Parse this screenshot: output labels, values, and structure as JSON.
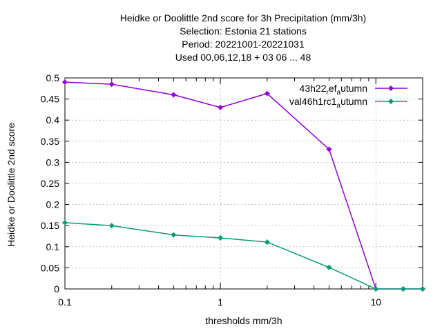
{
  "chart_data": {
    "type": "line",
    "title_lines": [
      "Heidke or Doolittle 2nd score  for 3h Precipitation (mm/3h)",
      "Selection: Estonia      21 stations",
      "Period: 20221001-20221031",
      "Used  00,06,12,18  + 03 06 ... 48"
    ],
    "xlabel": "thresholds mm/3h",
    "ylabel": "Heidke or Doolittle 2nd score",
    "x_scale": "log",
    "xlim": [
      0.1,
      20
    ],
    "ylim": [
      0,
      0.5
    ],
    "x_ticks": [
      0.1,
      1,
      10
    ],
    "x_tick_labels": [
      "0.1",
      "1",
      "10"
    ],
    "y_ticks": [
      0,
      0.05,
      0.1,
      0.15,
      0.2,
      0.25,
      0.3,
      0.35,
      0.4,
      0.45,
      0.5
    ],
    "y_tick_labels": [
      "0",
      "0.05",
      "0.1",
      "0.15",
      "0.2",
      "0.25",
      "0.3",
      "0.35",
      "0.4",
      "0.45",
      "0.5"
    ],
    "grid": true,
    "legend_position": "top-right",
    "series": [
      {
        "name_main": "43h22",
        "name_sub": "r",
        "name_mid": "ef",
        "name_sub2": "a",
        "name_tail": "utumn",
        "color": "#9400d3",
        "x": [
          0.1,
          0.2,
          0.5,
          1,
          2,
          5,
          10,
          15,
          20
        ],
        "y": [
          0.49,
          0.485,
          0.46,
          0.43,
          0.463,
          0.331,
          0.0,
          0.0,
          0.0
        ]
      },
      {
        "name_main": "val46h1rc1",
        "name_sub": "a",
        "name_mid": "",
        "name_sub2": "",
        "name_tail": "utumn",
        "color": "#009e73",
        "x": [
          0.1,
          0.2,
          0.5,
          1,
          2,
          5,
          10,
          15,
          20
        ],
        "y": [
          0.157,
          0.15,
          0.128,
          0.121,
          0.111,
          0.051,
          0.0,
          0.0,
          0.0
        ]
      }
    ]
  }
}
